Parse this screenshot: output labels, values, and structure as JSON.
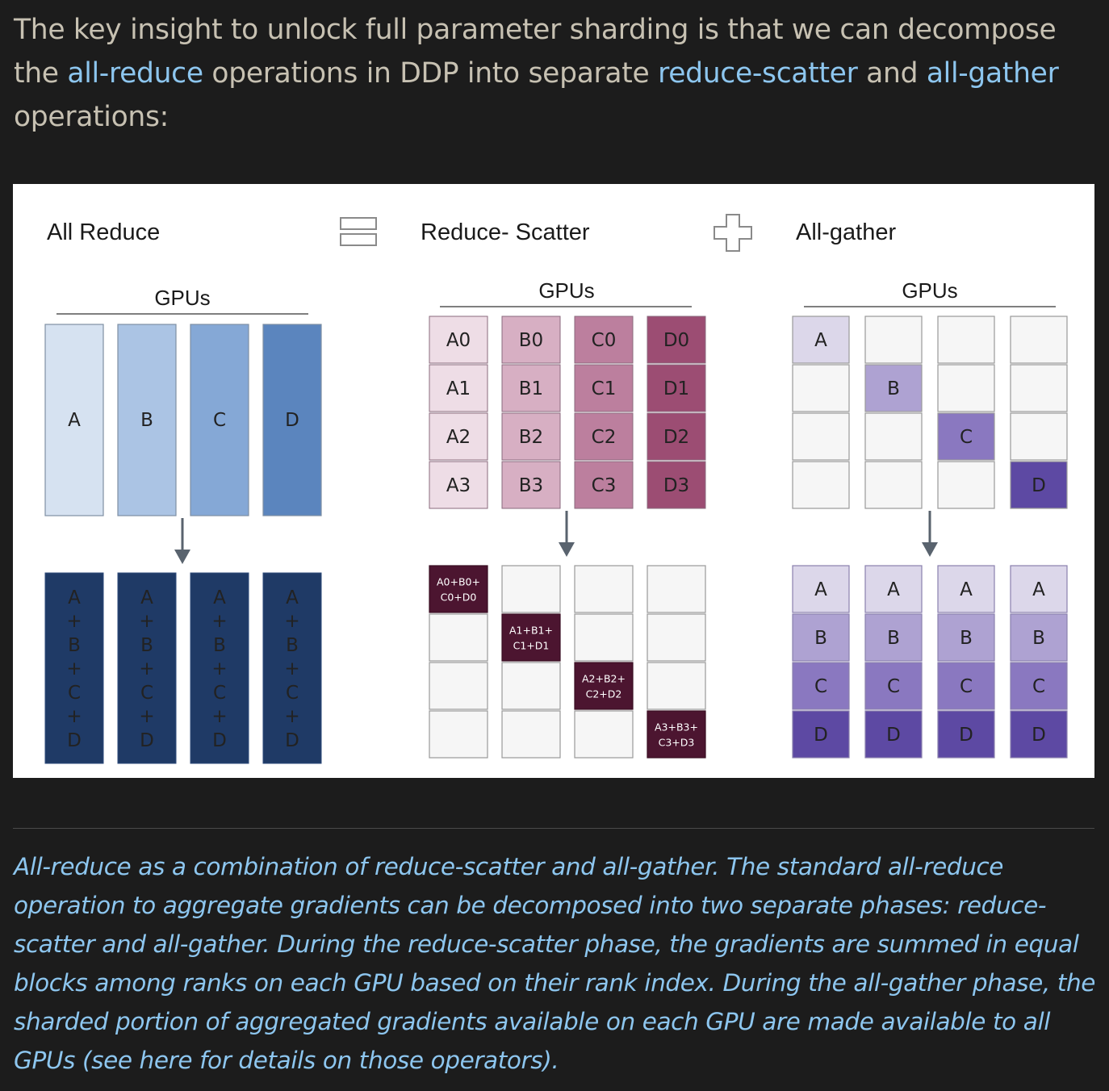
{
  "intro": {
    "before": "The key insight to unlock full parameter sharding is that we can decompose the ",
    "link_all_reduce": "all-reduce",
    "middle": " operations in DDP into separate ",
    "link_reduce_scatter": "reduce-scatter",
    "and": " and ",
    "link_all_gather": "all-gather",
    "after": " operations:"
  },
  "diagram": {
    "all_reduce": {
      "title": "All Reduce",
      "gpus_label": "GPUs",
      "top_labels": [
        "A",
        "B",
        "C",
        "D"
      ],
      "top_colors": [
        "#d6e2f1",
        "#abc4e4",
        "#85a8d6",
        "#5b85be"
      ],
      "bottom_sequence": [
        "A",
        "+",
        "B",
        "+",
        "C",
        "+",
        "D"
      ],
      "bottom_color": "#1f3a66"
    },
    "reduce_scatter": {
      "title": "Reduce- Scatter",
      "gpus_label": "GPUs",
      "grid": [
        [
          "A0",
          "B0",
          "C0",
          "D0"
        ],
        [
          "A1",
          "B1",
          "C1",
          "D1"
        ],
        [
          "A2",
          "B2",
          "C2",
          "D2"
        ],
        [
          "A3",
          "B3",
          "C3",
          "D3"
        ]
      ],
      "column_colors": [
        "#eedde6",
        "#d7afc3",
        "#bc7f9e",
        "#9c4d73"
      ],
      "results": [
        [
          "A0+B0+",
          "C0+D0"
        ],
        [
          "A1+B1+",
          "C1+D1"
        ],
        [
          "A2+B2+",
          "C2+D2"
        ],
        [
          "A3+B3+",
          "C3+D3"
        ]
      ],
      "result_color": "#4c1530"
    },
    "all_gather": {
      "title": "All-gather",
      "gpus_label": "GPUs",
      "shards": [
        "A",
        "B",
        "C",
        "D"
      ],
      "shard_colors": [
        "#dcd7ea",
        "#aea2d2",
        "#8a78c0",
        "#5d49a3"
      ],
      "gathered": [
        "A",
        "B",
        "C",
        "D"
      ]
    },
    "equals_icon": "equals-icon",
    "plus_icon": "plus-icon",
    "arrow_color": "#59636e"
  },
  "caption": {
    "text": "All-reduce as a combination of reduce-scatter and all-gather. The standard all-reduce operation to aggregate gradients can be decomposed into two separate phases: reduce-scatter and all-gather. During the reduce-scatter phase, the gradients are summed in equal blocks among ranks on each GPU based on their rank index. During the all-gather phase, the sharded portion of aggregated gradients available on each GPU are made available to all GPUs (",
    "link": "see here",
    "after": " for details on those operators)."
  }
}
